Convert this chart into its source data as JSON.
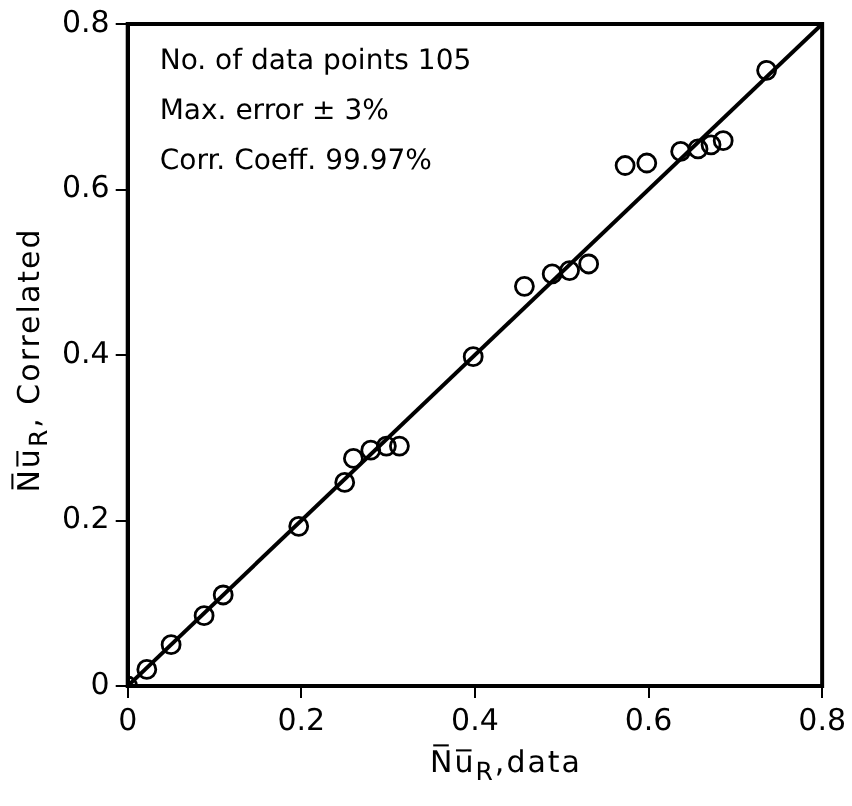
{
  "chart_data": {
    "type": "scatter",
    "xlabel": "N̅u̅$_{R}$,data",
    "ylabel": "N̅u̅$_{R}$, Correlated",
    "annotations": [
      "No. of data points 105",
      "Max. error ± 3%",
      "Corr. Coeff. 99.97%"
    ],
    "series": [
      {
        "color": "#000000",
        "marker": "circle",
        "x": [
          0,
          0.022,
          0.05,
          0.088,
          0.11,
          0.197,
          0.25,
          0.26,
          0.28,
          0.298,
          0.313,
          0.398,
          0.457,
          0.489,
          0.509,
          0.531,
          0.573,
          0.598,
          0.637,
          0.657,
          0.672,
          0.686,
          0.736
        ],
        "values": [
          0,
          0.02,
          0.05,
          0.085,
          0.11,
          0.193,
          0.246,
          0.275,
          0.285,
          0.29,
          0.29,
          0.398,
          0.483,
          0.498,
          0.502,
          0.51,
          0.629,
          0.632,
          0.646,
          0.649,
          0.654,
          0.659,
          0.744
        ]
      },
      {
        "type": "line",
        "color": "#000000",
        "marker": "none",
        "line_style": "solid",
        "x": [
          0,
          0.8
        ],
        "values": [
          0,
          0.8
        ]
      }
    ],
    "xlim": [
      0,
      0.8
    ],
    "ylim": [
      0,
      0.8
    ],
    "xticks": [
      0,
      0.2,
      0.4,
      0.6,
      0.8
    ],
    "yticks": [
      0,
      0.2,
      0.4,
      0.6,
      0.8
    ],
    "grid": false,
    "legend": false
  }
}
